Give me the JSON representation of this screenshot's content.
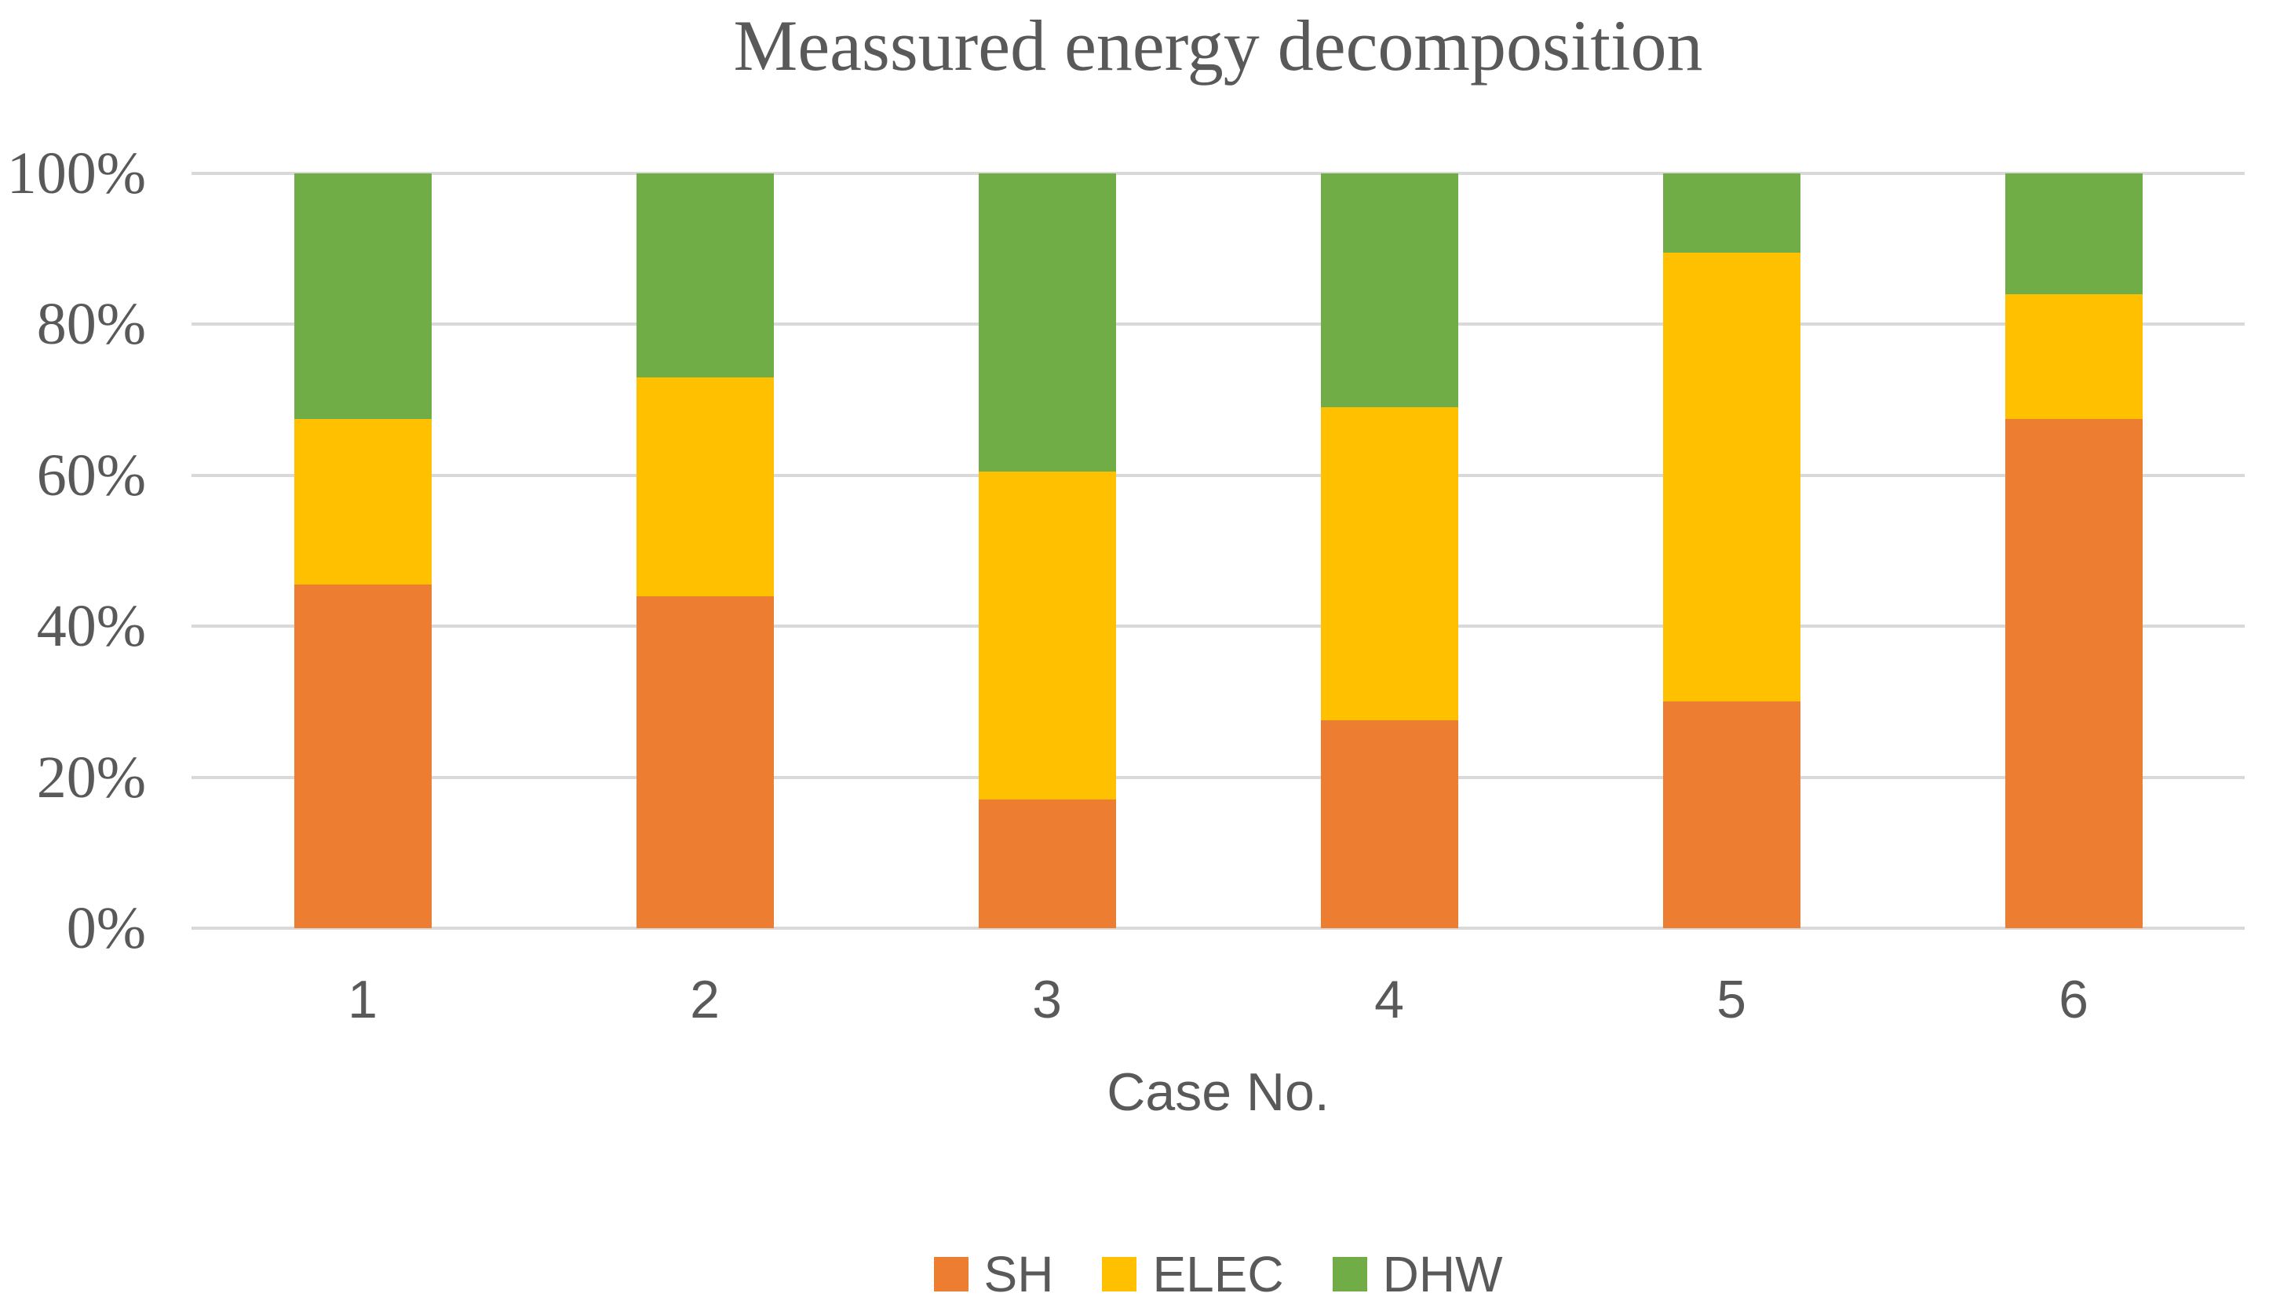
{
  "chart_data": {
    "type": "bar",
    "variant": "stacked-100-percent",
    "title": "Meassured energy decomposition",
    "xlabel": "Case No.",
    "ylabel": "",
    "categories": [
      "1",
      "2",
      "3",
      "4",
      "5",
      "6"
    ],
    "series": [
      {
        "name": "SH",
        "color": "#ED7D31",
        "values": [
          45.5,
          44,
          17,
          27.5,
          30,
          67.5
        ]
      },
      {
        "name": "ELEC",
        "color": "#FFC000",
        "values": [
          22,
          29,
          43.5,
          41.5,
          59.5,
          16.5
        ]
      },
      {
        "name": "DHW",
        "color": "#70AD47",
        "values": [
          32.5,
          27,
          39.5,
          31,
          10.5,
          16
        ]
      }
    ],
    "y_ticks": [
      "0%",
      "20%",
      "40%",
      "60%",
      "80%",
      "100%"
    ],
    "ylim": [
      0,
      100
    ],
    "grid": true,
    "legend_position": "bottom",
    "colors": {
      "gridline": "#D9D9D9",
      "text": "#595959",
      "background": "#FFFFFF"
    }
  }
}
